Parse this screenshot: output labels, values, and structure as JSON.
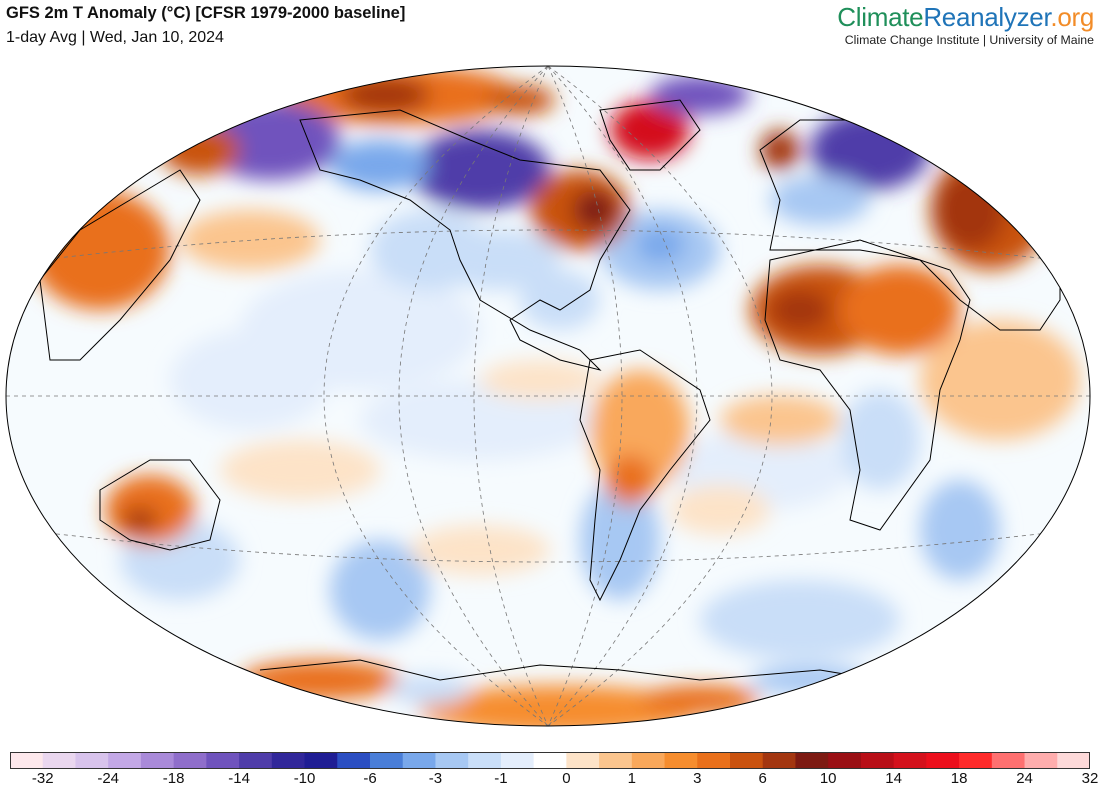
{
  "header": {
    "title": "GFS 2m T Anomaly (°C) [CFSR 1979-2000 baseline]",
    "subtitle": "1-day Avg | Wed, Jan 10, 2024"
  },
  "brand": {
    "logo_part1": "Climate",
    "logo_part2": "Reanalyzer",
    "logo_part3": ".org",
    "tagline": "Climate Change Institute | University of Maine"
  },
  "colors": {
    "ocean_base": "#f6fbfe",
    "land_outline": "#000000",
    "graticule": "#777777"
  },
  "colorbar": {
    "colors": [
      "#fde8ec",
      "#ead7ef",
      "#d8c3ec",
      "#c3a8e6",
      "#a98ad9",
      "#8f6ecb",
      "#6f53bd",
      "#4f3ca9",
      "#31279a",
      "#1f1d94",
      "#2b4ec2",
      "#4a7ed8",
      "#79a8eb",
      "#a7c8f3",
      "#c9def8",
      "#e4eefc",
      "#ffffff",
      "#fde3c8",
      "#fbc58e",
      "#f9a85b",
      "#f68d2e",
      "#e9701b",
      "#c9520f",
      "#a33610",
      "#7d1a12",
      "#9a0f14",
      "#b80e17",
      "#d4111c",
      "#ec0f1c",
      "#ff2b2b",
      "#ff7070",
      "#ffadad",
      "#fdd9d9"
    ],
    "tick_labels": [
      "-32",
      "-24",
      "-18",
      "-14",
      "-10",
      "-6",
      "-3",
      "-1",
      "0",
      "1",
      "3",
      "6",
      "10",
      "14",
      "18",
      "24",
      "32"
    ]
  }
}
